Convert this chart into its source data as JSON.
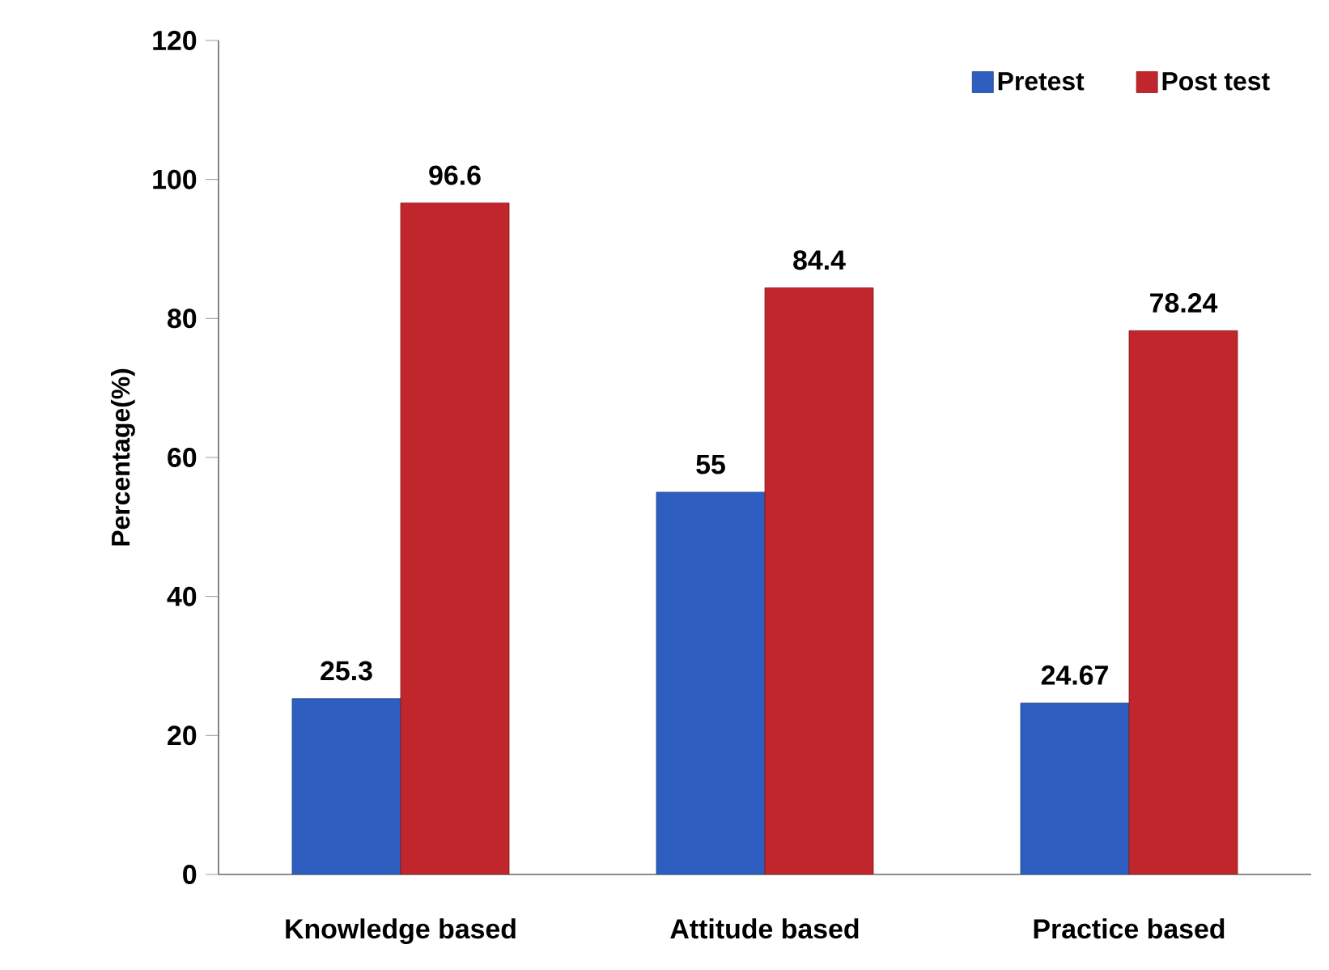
{
  "chart_data": {
    "type": "bar",
    "ylabel": "Percentage(%)",
    "categories": [
      "Knowledge based",
      "Attitude based",
      "Practice based"
    ],
    "series": [
      {
        "name": "Pretest",
        "color": "#2e5ebf",
        "values": [
          25.3,
          55,
          24.67
        ]
      },
      {
        "name": "Post test",
        "color": "#c0262b",
        "values": [
          96.6,
          84.4,
          78.24
        ]
      }
    ],
    "ylim": [
      0,
      120
    ],
    "yticks": [
      0,
      20,
      40,
      60,
      80,
      100,
      120
    ],
    "grid": false,
    "legend": "top right",
    "data_labels": true
  }
}
